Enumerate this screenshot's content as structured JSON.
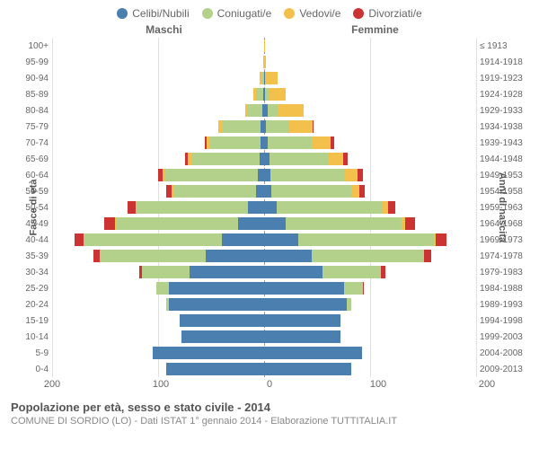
{
  "legend": {
    "items": [
      {
        "label": "Celibi/Nubili",
        "color": "#4a7fb0"
      },
      {
        "label": "Coniugati/e",
        "color": "#b3d18a"
      },
      {
        "label": "Vedovi/e",
        "color": "#f3c14b"
      },
      {
        "label": "Divorziati/e",
        "color": "#cc3333"
      }
    ]
  },
  "headers": {
    "male": "Maschi",
    "female": "Femmine"
  },
  "axis_left_label": "Fasce di età",
  "axis_right_label": "Anni di nascita",
  "x_axis": {
    "max": 200,
    "ticks": [
      200,
      100,
      0,
      100,
      200
    ]
  },
  "footer": {
    "title": "Popolazione per età, sesso e stato civile - 2014",
    "subtitle": "COMUNE DI SORDIO (LO) - Dati ISTAT 1° gennaio 2014 - Elaborazione TUTTITALIA.IT"
  },
  "colors": {
    "celibi": "#4a7fb0",
    "coniugati": "#b3d18a",
    "vedovi": "#f3c14b",
    "divorziati": "#cc3333",
    "grid": "#e0e0e0",
    "center_line": "#999999",
    "background": "#ffffff"
  },
  "rows": [
    {
      "age": "100+",
      "birth": "≤ 1913",
      "m": [
        0,
        0,
        0,
        0
      ],
      "f": [
        0,
        0,
        1,
        0
      ]
    },
    {
      "age": "95-99",
      "birth": "1914-1918",
      "m": [
        0,
        0,
        1,
        0
      ],
      "f": [
        0,
        0,
        2,
        0
      ]
    },
    {
      "age": "90-94",
      "birth": "1919-1923",
      "m": [
        0,
        2,
        2,
        0
      ],
      "f": [
        1,
        1,
        11,
        0
      ]
    },
    {
      "age": "85-89",
      "birth": "1924-1928",
      "m": [
        1,
        6,
        3,
        0
      ],
      "f": [
        1,
        4,
        15,
        0
      ]
    },
    {
      "age": "80-84",
      "birth": "1929-1933",
      "m": [
        2,
        13,
        3,
        0
      ],
      "f": [
        3,
        10,
        24,
        0
      ]
    },
    {
      "age": "75-79",
      "birth": "1934-1938",
      "m": [
        3,
        36,
        4,
        0
      ],
      "f": [
        2,
        22,
        22,
        1
      ]
    },
    {
      "age": "70-74",
      "birth": "1939-1943",
      "m": [
        3,
        48,
        3,
        2
      ],
      "f": [
        3,
        42,
        18,
        3
      ]
    },
    {
      "age": "65-69",
      "birth": "1944-1948",
      "m": [
        4,
        65,
        3,
        3
      ],
      "f": [
        5,
        55,
        15,
        4
      ]
    },
    {
      "age": "60-64",
      "birth": "1949-1953",
      "m": [
        6,
        88,
        2,
        4
      ],
      "f": [
        6,
        70,
        12,
        5
      ]
    },
    {
      "age": "55-59",
      "birth": "1954-1958",
      "m": [
        8,
        78,
        1,
        5
      ],
      "f": [
        7,
        75,
        8,
        5
      ]
    },
    {
      "age": "50-54",
      "birth": "1959-1963",
      "m": [
        15,
        105,
        1,
        8
      ],
      "f": [
        12,
        100,
        5,
        7
      ]
    },
    {
      "age": "45-49",
      "birth": "1964-1968",
      "m": [
        25,
        115,
        1,
        10
      ],
      "f": [
        20,
        110,
        3,
        9
      ]
    },
    {
      "age": "40-44",
      "birth": "1969-1973",
      "m": [
        40,
        130,
        0,
        9
      ],
      "f": [
        32,
        128,
        2,
        10
      ]
    },
    {
      "age": "35-39",
      "birth": "1974-1978",
      "m": [
        55,
        100,
        0,
        6
      ],
      "f": [
        45,
        105,
        1,
        7
      ]
    },
    {
      "age": "30-34",
      "birth": "1979-1983",
      "m": [
        70,
        45,
        0,
        3
      ],
      "f": [
        55,
        55,
        0,
        4
      ]
    },
    {
      "age": "25-29",
      "birth": "1984-1988",
      "m": [
        90,
        12,
        0,
        0
      ],
      "f": [
        75,
        18,
        0,
        1
      ]
    },
    {
      "age": "20-24",
      "birth": "1989-1993",
      "m": [
        90,
        2,
        0,
        0
      ],
      "f": [
        78,
        4,
        0,
        0
      ]
    },
    {
      "age": "15-19",
      "birth": "1994-1998",
      "m": [
        80,
        0,
        0,
        0
      ],
      "f": [
        72,
        0,
        0,
        0
      ]
    },
    {
      "age": "10-14",
      "birth": "1999-2003",
      "m": [
        78,
        0,
        0,
        0
      ],
      "f": [
        72,
        0,
        0,
        0
      ]
    },
    {
      "age": "5-9",
      "birth": "2004-2008",
      "m": [
        105,
        0,
        0,
        0
      ],
      "f": [
        92,
        0,
        0,
        0
      ]
    },
    {
      "age": "0-4",
      "birth": "2009-2013",
      "m": [
        92,
        0,
        0,
        0
      ],
      "f": [
        82,
        0,
        0,
        0
      ]
    }
  ]
}
